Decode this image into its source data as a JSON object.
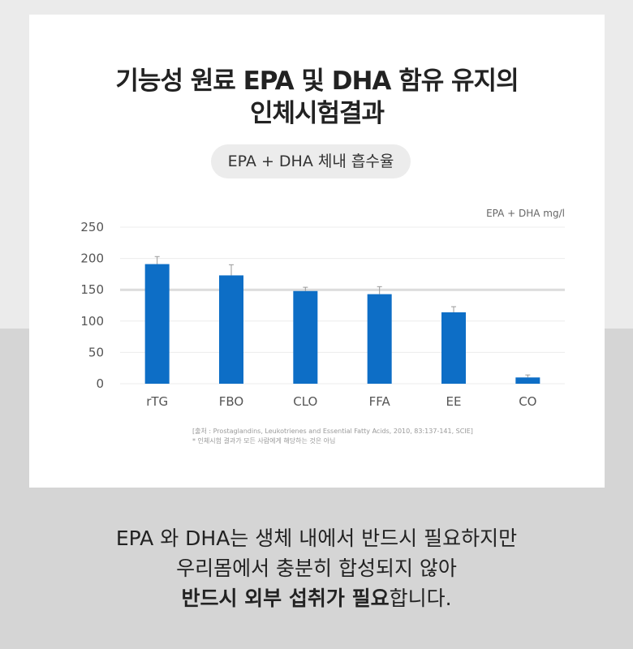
{
  "title_line1": "기능성 원료 EPA 및 DHA 함유 유지의",
  "title_line2": "인체시험결과",
  "pill_label": "EPA + DHA 체내 흡수율",
  "chart_data": {
    "type": "bar",
    "categories": [
      "rTG",
      "FBO",
      "CLO",
      "FFA",
      "EE",
      "CO"
    ],
    "values": [
      191,
      173,
      148,
      143,
      114,
      10
    ],
    "error": [
      12,
      17,
      6,
      12,
      9,
      4
    ],
    "unit_label": "EPA + DHA mg/l",
    "ylim": [
      0,
      250
    ],
    "yticks": [
      "0",
      "50",
      "100",
      "150",
      "200",
      "250"
    ],
    "grid": true,
    "bar_color": "#0d6ec6"
  },
  "source_line1": "[출처 : Prostaglandins, Leukotrienes and Essential Fatty Acids, 2010, 83:137-141, SCIE]",
  "source_line2": "* 인체시험 결과가 모든 사람에게 해당하는 것은 아님",
  "bottom_line1": "EPA 와 DHA는 생체 내에서 반드시 필요하지만",
  "bottom_line2": "우리몸에서 충분히 합성되지 않아",
  "bottom_line3_bold": "반드시 외부 섭취가 필요",
  "bottom_line3_rest": "합니다."
}
